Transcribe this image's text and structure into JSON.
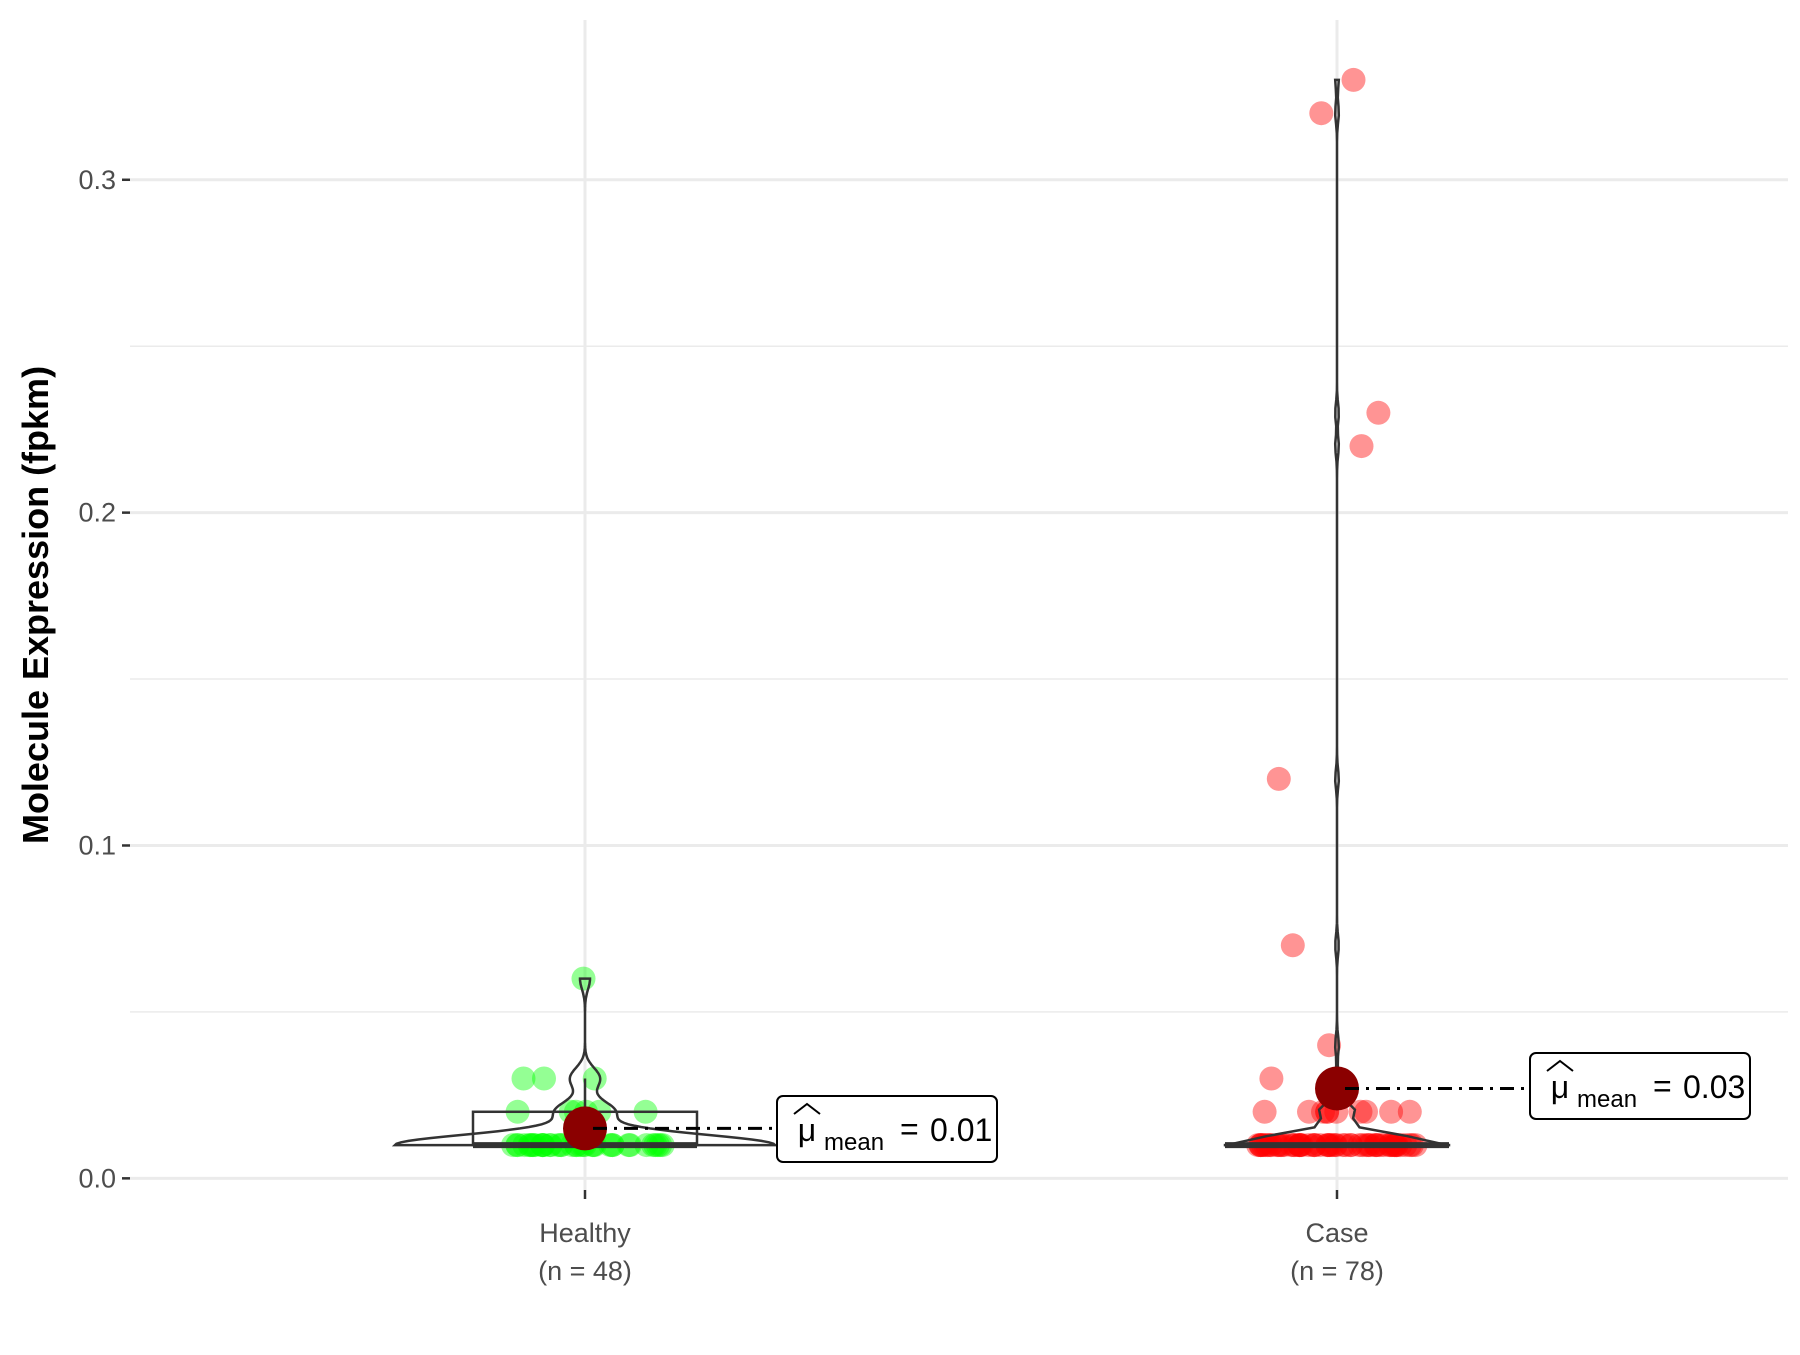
{
  "chart_data": {
    "type": "violin-box-scatter",
    "title": "",
    "xlabel": "",
    "ylabel": "Molecule Expression (fpkm)",
    "ylim": [
      -0.0035,
      0.348
    ],
    "y_ticks": [
      0.0,
      0.1,
      0.2,
      0.3
    ],
    "y_tick_labels": [
      "0.0",
      "0.1",
      "0.2",
      "0.3"
    ],
    "grid": true,
    "groups": [
      {
        "name": "Healthy",
        "n_label": "(n = 48)",
        "color": "#00ff00",
        "points": [
          0.06,
          0.03,
          0.03,
          0.03,
          0.02,
          0.02,
          0.02,
          0.02,
          0.02,
          0.02,
          0.01,
          0.01,
          0.01,
          0.01,
          0.01,
          0.01,
          0.01,
          0.01,
          0.01,
          0.01,
          0.01,
          0.01,
          0.01,
          0.01,
          0.01,
          0.01,
          0.01,
          0.01,
          0.01,
          0.01,
          0.01,
          0.01,
          0.01,
          0.01,
          0.01,
          0.01,
          0.01,
          0.01,
          0.01,
          0.01,
          0.01,
          0.01,
          0.01,
          0.01,
          0.01,
          0.01,
          0.01,
          0.01
        ],
        "box": {
          "lower": 0.01,
          "median": 0.01,
          "upper": 0.02,
          "whisker_low": 0.01,
          "whisker_high": 0.03
        },
        "mean": 0.015,
        "mean_label": "0.01"
      },
      {
        "name": "Case",
        "n_label": "(n = 78)",
        "color": "#ff0000",
        "points": [
          0.33,
          0.32,
          0.23,
          0.22,
          0.12,
          0.07,
          0.04,
          0.03,
          0.02,
          0.02,
          0.02,
          0.02,
          0.02,
          0.02,
          0.02,
          0.02,
          0.02,
          0.02,
          0.01,
          0.01,
          0.01,
          0.01,
          0.01,
          0.01,
          0.01,
          0.01,
          0.01,
          0.01,
          0.01,
          0.01,
          0.01,
          0.01,
          0.01,
          0.01,
          0.01,
          0.01,
          0.01,
          0.01,
          0.01,
          0.01,
          0.01,
          0.01,
          0.01,
          0.01,
          0.01,
          0.01,
          0.01,
          0.01,
          0.01,
          0.01,
          0.01,
          0.01,
          0.01,
          0.01,
          0.01,
          0.01,
          0.01,
          0.01,
          0.01,
          0.01,
          0.01,
          0.01,
          0.01,
          0.01,
          0.01,
          0.01,
          0.01,
          0.01,
          0.01,
          0.01,
          0.01,
          0.01,
          0.01,
          0.01,
          0.01,
          0.01,
          0.01,
          0.01
        ],
        "box": {
          "lower": 0.01,
          "median": 0.01,
          "upper": 0.01,
          "whisker_low": 0.01,
          "whisker_high": 0.01
        },
        "mean": 0.027,
        "mean_label": "0.03"
      }
    ],
    "mean_symbol": "μ",
    "mean_subscript": "mean",
    "mean_point_color": "#8b0000"
  }
}
